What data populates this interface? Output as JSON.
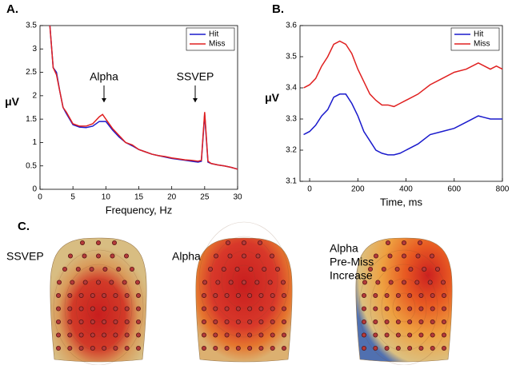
{
  "chart_data": [
    {
      "type": "line",
      "panel": "A.",
      "xlabel": "Frequency, Hz",
      "ylabel": "μV",
      "x": [
        1.5,
        2,
        2.5,
        3,
        3.5,
        4,
        5,
        6,
        7,
        8,
        9,
        9.5,
        10,
        11,
        12,
        13,
        14,
        15,
        16,
        17,
        18,
        19,
        20,
        21,
        22,
        23,
        24,
        24.5,
        25,
        25.5,
        26,
        27,
        28,
        29,
        30
      ],
      "series": [
        {
          "name": "Hit",
          "color": "#1a1acc",
          "values": [
            3.5,
            2.6,
            2.5,
            2.1,
            1.75,
            1.62,
            1.38,
            1.33,
            1.32,
            1.35,
            1.45,
            1.45,
            1.45,
            1.27,
            1.12,
            1.0,
            0.93,
            0.85,
            0.8,
            0.75,
            0.72,
            0.69,
            0.66,
            0.64,
            0.62,
            0.6,
            0.58,
            0.6,
            1.6,
            0.58,
            0.55,
            0.52,
            0.5,
            0.47,
            0.43
          ]
        },
        {
          "name": "Miss",
          "color": "#e02020",
          "values": [
            3.5,
            2.6,
            2.45,
            2.1,
            1.75,
            1.65,
            1.4,
            1.35,
            1.35,
            1.4,
            1.55,
            1.6,
            1.5,
            1.3,
            1.15,
            1.0,
            0.95,
            0.85,
            0.8,
            0.75,
            0.72,
            0.7,
            0.67,
            0.65,
            0.63,
            0.62,
            0.6,
            0.62,
            1.65,
            0.6,
            0.55,
            0.52,
            0.5,
            0.47,
            0.43
          ]
        }
      ],
      "annotations": [
        "Alpha",
        "SSVEP"
      ],
      "xlim": [
        0,
        30
      ],
      "xticks": [
        0,
        5,
        10,
        15,
        20,
        25,
        30
      ],
      "ylim": [
        0,
        3.5
      ],
      "yticks": [
        0,
        0.5,
        1,
        1.5,
        2,
        2.5,
        3,
        3.5
      ],
      "legend": "upper right"
    },
    {
      "type": "line",
      "panel": "B.",
      "xlabel": "Time, ms",
      "ylabel": "μV",
      "x": [
        -25,
        0,
        25,
        50,
        75,
        100,
        125,
        150,
        175,
        200,
        225,
        250,
        275,
        300,
        325,
        350,
        375,
        400,
        450,
        500,
        550,
        600,
        650,
        700,
        725,
        750,
        775,
        800
      ],
      "series": [
        {
          "name": "Hit",
          "color": "#1a1acc",
          "values": [
            3.25,
            3.26,
            3.28,
            3.31,
            3.33,
            3.37,
            3.38,
            3.38,
            3.35,
            3.31,
            3.26,
            3.23,
            3.2,
            3.19,
            3.185,
            3.185,
            3.19,
            3.2,
            3.22,
            3.25,
            3.26,
            3.27,
            3.29,
            3.31,
            3.305,
            3.3,
            3.3,
            3.3
          ]
        },
        {
          "name": "Miss",
          "color": "#e02020",
          "values": [
            3.4,
            3.41,
            3.43,
            3.47,
            3.5,
            3.54,
            3.55,
            3.54,
            3.51,
            3.46,
            3.42,
            3.38,
            3.36,
            3.345,
            3.345,
            3.34,
            3.35,
            3.36,
            3.38,
            3.41,
            3.43,
            3.45,
            3.46,
            3.48,
            3.47,
            3.46,
            3.47,
            3.46
          ]
        }
      ],
      "xlim": [
        -40,
        800
      ],
      "xticks": [
        0,
        200,
        400,
        600,
        800
      ],
      "ylim": [
        3.1,
        3.6
      ],
      "yticks": [
        3.1,
        3.2,
        3.3,
        3.4,
        3.5,
        3.6
      ],
      "legend": "upper right"
    }
  ],
  "topomaps": {
    "panel": "C.",
    "maps": [
      {
        "label": [
          "SSVEP"
        ]
      },
      {
        "label": [
          "Alpha"
        ]
      },
      {
        "label": [
          "Alpha",
          "Pre-Miss",
          "Increase"
        ]
      }
    ]
  }
}
